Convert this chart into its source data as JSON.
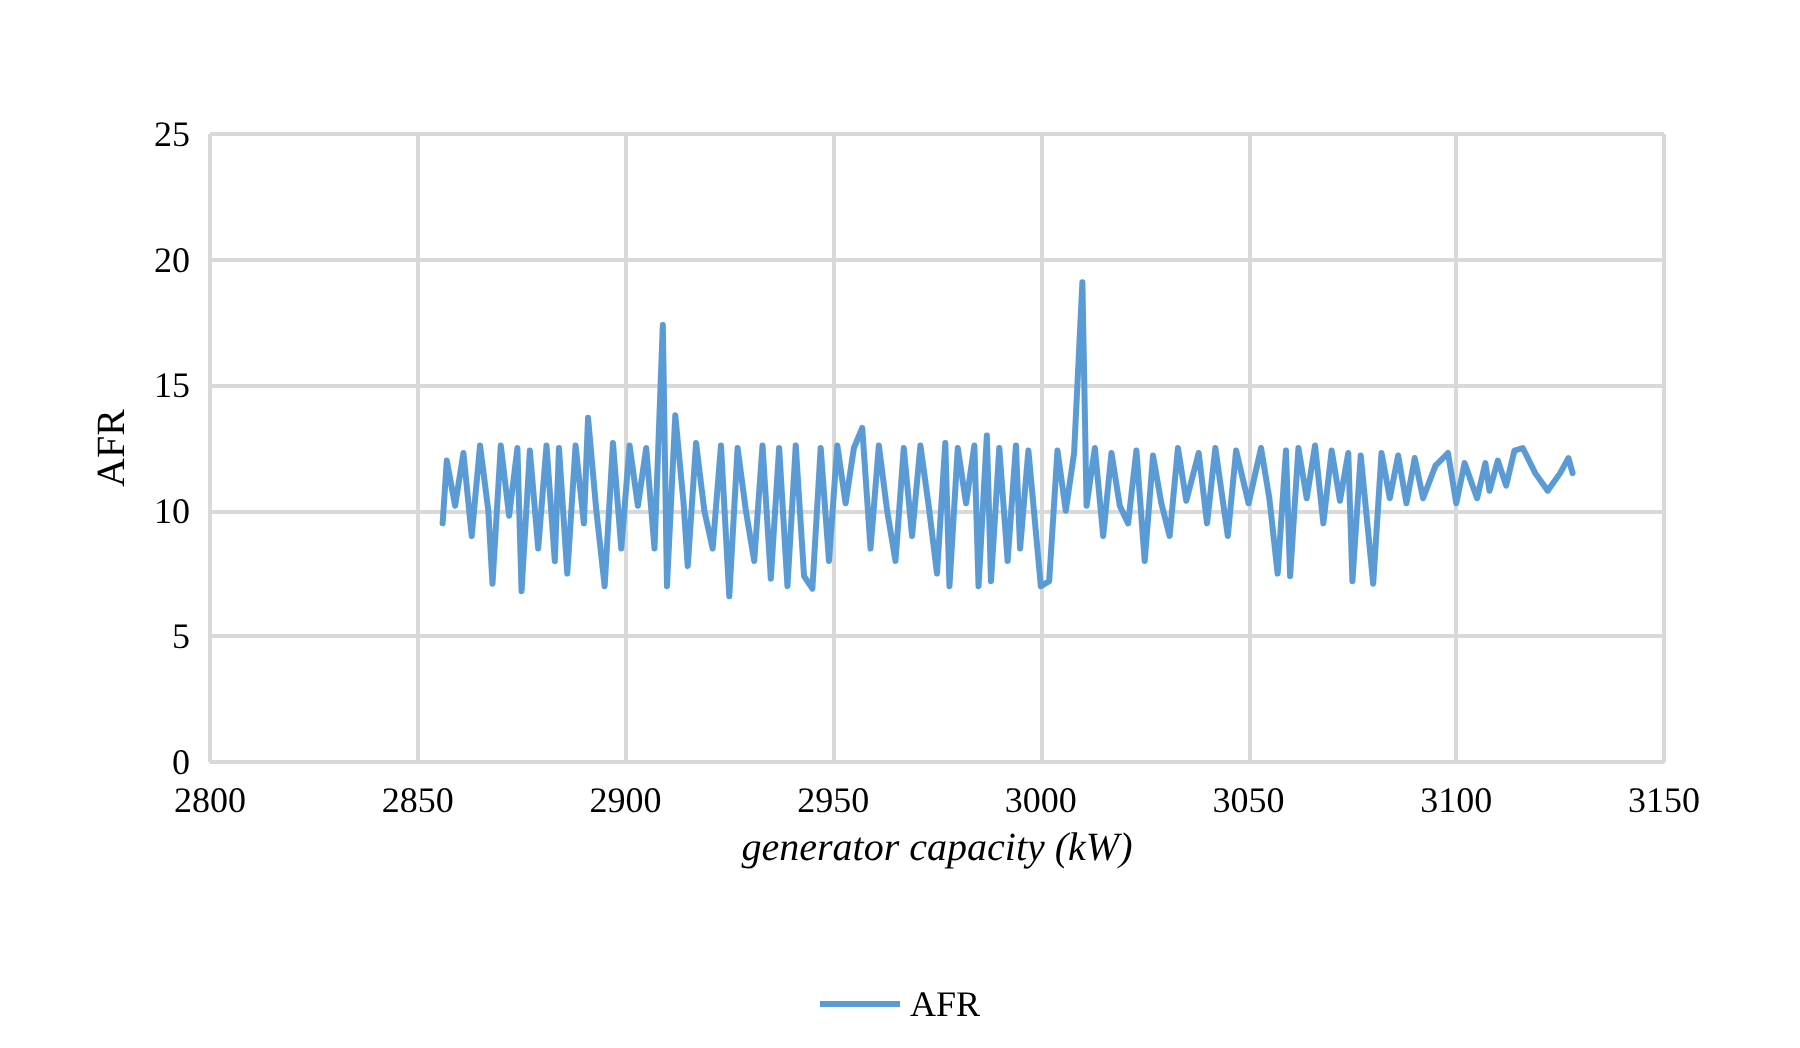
{
  "chart_data": {
    "type": "line",
    "xlabel": "generator capacity (kW)",
    "ylabel": "AFR",
    "xlim": [
      2800,
      3150
    ],
    "xticks": [
      2800,
      2850,
      2900,
      2950,
      3000,
      3050,
      3100,
      3150
    ],
    "ylim": [
      0,
      25
    ],
    "yticks": [
      0,
      5,
      10,
      15,
      20,
      25
    ],
    "grid": true,
    "legend": "bottom",
    "marker": "none",
    "line_style": "solid",
    "series": [
      {
        "name": "AFR",
        "color": "#5b9bd5",
        "x": [
          2856,
          2857,
          2859,
          2861,
          2863,
          2865,
          2867,
          2868,
          2870,
          2872,
          2874,
          2875,
          2877,
          2879,
          2881,
          2883,
          2884,
          2886,
          2888,
          2890,
          2891,
          2893,
          2895,
          2897,
          2899,
          2901,
          2903,
          2905,
          2907,
          2909,
          2910,
          2912,
          2914,
          2915,
          2917,
          2919,
          2921,
          2923,
          2925,
          2927,
          2929,
          2931,
          2933,
          2935,
          2937,
          2939,
          2941,
          2943,
          2945,
          2947,
          2949,
          2951,
          2953,
          2955,
          2957,
          2959,
          2961,
          2963,
          2965,
          2967,
          2969,
          2971,
          2973,
          2975,
          2977,
          2978,
          2980,
          2982,
          2984,
          2985,
          2987,
          2988,
          2990,
          2992,
          2994,
          2995,
          2997,
          3000,
          3002,
          3004,
          3006,
          3008,
          3010,
          3011,
          3013,
          3015,
          3017,
          3019,
          3021,
          3023,
          3025,
          3027,
          3029,
          3031,
          3033,
          3035,
          3038,
          3040,
          3042,
          3045,
          3047,
          3050,
          3053,
          3055,
          3057,
          3059,
          3060,
          3062,
          3064,
          3066,
          3068,
          3070,
          3072,
          3074,
          3075,
          3077,
          3080,
          3082,
          3084,
          3086,
          3088,
          3090,
          3092,
          3095,
          3098,
          3100,
          3102,
          3105,
          3107,
          3108,
          3110,
          3112,
          3114,
          3116,
          3119,
          3122,
          3125,
          3127,
          3128
        ],
        "values": [
          9.5,
          12.0,
          10.2,
          12.3,
          9.0,
          12.6,
          10.0,
          7.1,
          12.6,
          9.8,
          12.5,
          6.8,
          12.4,
          8.5,
          12.6,
          8.0,
          12.5,
          7.5,
          12.6,
          9.5,
          13.7,
          10.0,
          7.0,
          12.7,
          8.5,
          12.6,
          10.2,
          12.5,
          8.5,
          17.4,
          7.0,
          13.8,
          10.3,
          7.8,
          12.7,
          10.0,
          8.5,
          12.6,
          6.6,
          12.5,
          10.0,
          8.0,
          12.6,
          7.3,
          12.5,
          7.0,
          12.6,
          7.4,
          6.9,
          12.5,
          8.0,
          12.6,
          10.3,
          12.5,
          13.3,
          8.5,
          12.6,
          10.0,
          8.0,
          12.5,
          9.0,
          12.6,
          10.2,
          7.5,
          12.7,
          7.0,
          12.5,
          10.3,
          12.6,
          7.0,
          13.0,
          7.2,
          12.5,
          8.0,
          12.6,
          8.5,
          12.4,
          7.0,
          7.2,
          12.4,
          10.0,
          12.3,
          19.1,
          10.2,
          12.5,
          9.0,
          12.3,
          10.2,
          9.5,
          12.4,
          8.0,
          12.2,
          10.3,
          9.0,
          12.5,
          10.4,
          12.3,
          9.5,
          12.5,
          9.0,
          12.4,
          10.3,
          12.5,
          10.5,
          7.5,
          12.4,
          7.4,
          12.5,
          10.5,
          12.6,
          9.5,
          12.4,
          10.4,
          12.3,
          7.2,
          12.2,
          7.1,
          12.3,
          10.5,
          12.2,
          10.3,
          12.1,
          10.5,
          11.8,
          12.3,
          10.3,
          11.9,
          10.5,
          11.9,
          10.8,
          12.0,
          11.0,
          12.4,
          12.5,
          11.5,
          10.8,
          11.5,
          12.1,
          11.5
        ]
      }
    ]
  }
}
